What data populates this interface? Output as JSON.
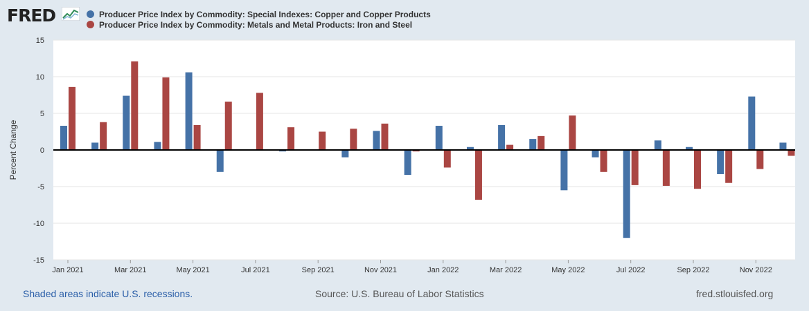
{
  "header": {
    "logo_text": "FRED",
    "logo_icon": "fred-chart-icon"
  },
  "legend": [
    {
      "label": "Producer Price Index by Commodity: Special Indexes: Copper and Copper Products",
      "color": "#4572a7"
    },
    {
      "label": "Producer Price Index by Commodity: Metals and Metal Products: Iron and Steel",
      "color": "#aa4643"
    }
  ],
  "footer": {
    "recessions": "Shaded areas indicate U.S. recessions.",
    "source": "Source: U.S. Bureau of Labor Statistics",
    "site": "fred.stlouisfed.org"
  },
  "chart_data": {
    "type": "bar",
    "title": "",
    "xlabel": "",
    "ylabel": "Percent Change",
    "ylim": [
      -15,
      15
    ],
    "yticks": [
      15,
      10,
      5,
      0,
      -5,
      -10,
      -15
    ],
    "categories": [
      "Jan 2021",
      "Feb 2021",
      "Mar 2021",
      "Apr 2021",
      "May 2021",
      "Jun 2021",
      "Jul 2021",
      "Aug 2021",
      "Sep 2021",
      "Oct 2021",
      "Nov 2021",
      "Dec 2021",
      "Jan 2022",
      "Feb 2022",
      "Mar 2022",
      "Apr 2022",
      "May 2022",
      "Jun 2022",
      "Jul 2022",
      "Aug 2022",
      "Sep 2022",
      "Oct 2022",
      "Nov 2022",
      "Dec 2022"
    ],
    "tick_labels": [
      "Jan 2021",
      "Mar 2021",
      "May 2021",
      "Jul 2021",
      "Sep 2021",
      "Nov 2021",
      "Jan 2022",
      "Mar 2022",
      "May 2022",
      "Jul 2022",
      "Sep 2022",
      "Nov 2022"
    ],
    "series": [
      {
        "name": "Copper and Copper Products",
        "color": "#4572a7",
        "values": [
          3.3,
          1.0,
          7.4,
          1.1,
          10.6,
          -3.0,
          0.0,
          -0.2,
          0.0,
          -1.0,
          2.6,
          -3.4,
          3.3,
          0.4,
          3.4,
          1.5,
          -5.5,
          -1.0,
          -12.0,
          1.3,
          0.4,
          -3.3,
          7.3,
          1.0
        ]
      },
      {
        "name": "Iron and Steel",
        "color": "#aa4643",
        "values": [
          8.6,
          3.8,
          12.1,
          9.9,
          3.4,
          6.6,
          7.8,
          3.1,
          2.5,
          2.9,
          3.6,
          -0.2,
          -2.4,
          -6.8,
          0.7,
          1.9,
          4.7,
          -3.0,
          -4.8,
          -4.9,
          -5.3,
          -4.5,
          -2.6,
          -0.8
        ]
      }
    ]
  }
}
